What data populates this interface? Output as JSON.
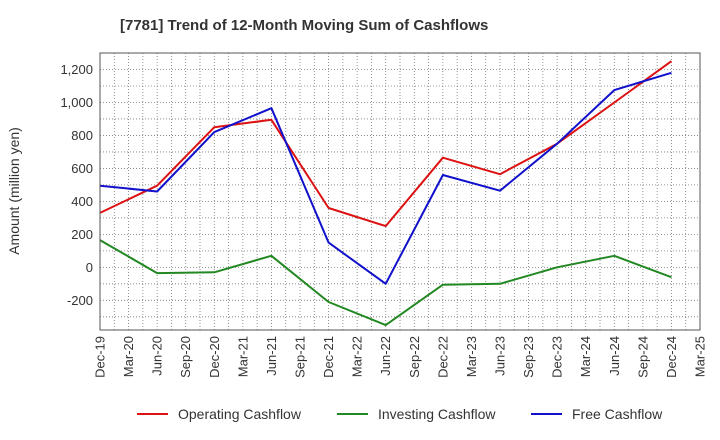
{
  "chart_data": {
    "type": "line",
    "title": "[7781]  Trend of 12-Month Moving Sum of Cashflows",
    "ylabel": "Amount (million yen)",
    "xlabel": "",
    "ylim": [
      -380,
      1300
    ],
    "yticks": [
      -200,
      0,
      200,
      400,
      600,
      800,
      1000,
      1200
    ],
    "ytick_labels": [
      "-200",
      "0",
      "200",
      "400",
      "600",
      "800",
      "1,000",
      "1,200"
    ],
    "categories": [
      "Dec-19",
      "Mar-20",
      "Jun-20",
      "Sep-20",
      "Dec-20",
      "Mar-21",
      "Jun-21",
      "Sep-21",
      "Dec-21",
      "Mar-22",
      "Jun-22",
      "Sep-22",
      "Dec-22",
      "Mar-23",
      "Jun-23",
      "Sep-23",
      "Dec-23",
      "Mar-24",
      "Jun-24",
      "Sep-24",
      "Dec-24",
      "Mar-25"
    ],
    "series": [
      {
        "name": "Operating Cashflow",
        "color": "#dd1111",
        "points": [
          [
            0,
            330
          ],
          [
            2,
            495
          ],
          [
            4,
            850
          ],
          [
            6,
            895
          ],
          [
            8,
            360
          ],
          [
            10,
            250
          ],
          [
            12,
            665
          ],
          [
            14,
            565
          ],
          [
            16,
            750
          ],
          [
            18,
            1000
          ],
          [
            20,
            1250
          ]
        ]
      },
      {
        "name": "Investing Cashflow",
        "color": "#228822",
        "points": [
          [
            0,
            165
          ],
          [
            2,
            -35
          ],
          [
            4,
            -30
          ],
          [
            6,
            70
          ],
          [
            8,
            -210
          ],
          [
            10,
            -350
          ],
          [
            12,
            -105
          ],
          [
            14,
            -100
          ],
          [
            16,
            0
          ],
          [
            18,
            70
          ],
          [
            20,
            -60
          ]
        ]
      },
      {
        "name": "Free Cashflow",
        "color": "#1111cc",
        "points": [
          [
            0,
            495
          ],
          [
            2,
            460
          ],
          [
            4,
            820
          ],
          [
            6,
            965
          ],
          [
            8,
            150
          ],
          [
            10,
            -100
          ],
          [
            12,
            560
          ],
          [
            14,
            465
          ],
          [
            16,
            750
          ],
          [
            18,
            1075
          ],
          [
            20,
            1180
          ]
        ]
      }
    ],
    "grid": true,
    "legend": "bottom"
  }
}
